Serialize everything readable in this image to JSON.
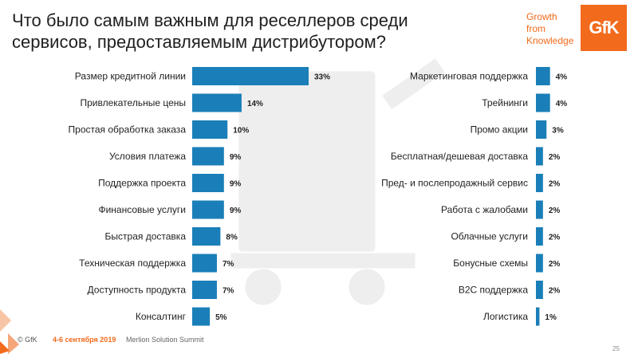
{
  "title": "Что было самым важным для реселлеров среди сервисов, предоставляемым дистрибутором?",
  "brand": {
    "tagline_1": "Growth",
    "tagline_2": "from",
    "tagline_3": "Knowledge",
    "logo_text": "GfK",
    "accent_color": "#f26a1b"
  },
  "footer": {
    "copyright": "© GfK",
    "date": "4-6 сентября 2019",
    "event": "Merlion Solution Summit",
    "page_number": "25"
  },
  "chart_data": [
    {
      "type": "bar",
      "orientation": "horizontal",
      "bar_color": "#1a7fb8",
      "categories": [
        "Размер кредитной линии",
        "Привлекательные цены",
        "Простая обработка заказа",
        "Условия платежа",
        "Поддержка проекта",
        "Финансовые услуги",
        "Быстрая доставка",
        "Техническая поддержка",
        "Доступность продукта",
        "Консалтинг"
      ],
      "values": [
        33,
        14,
        10,
        9,
        9,
        9,
        8,
        7,
        7,
        5
      ],
      "value_labels": [
        "33%",
        "14%",
        "10%",
        "9%",
        "9%",
        "9%",
        "8%",
        "7%",
        "7%",
        "5%"
      ],
      "xlim": [
        0,
        33
      ]
    },
    {
      "type": "bar",
      "orientation": "horizontal",
      "bar_color": "#1a7fb8",
      "categories": [
        "Маркетинговая поддержка",
        "Трейнинги",
        "Промо акции",
        "Бесплатная/дешевая доставка",
        "Пред- и послепродажный сервис",
        "Работа с жалобами",
        "Облачные услуги",
        "Бонусные схемы",
        "B2C поддержка",
        "Логистика"
      ],
      "values": [
        4,
        4,
        3,
        2,
        2,
        2,
        2,
        2,
        2,
        1
      ],
      "value_labels": [
        "4%",
        "4%",
        "3%",
        "2%",
        "2%",
        "2%",
        "2%",
        "2%",
        "2%",
        "1%"
      ],
      "xlim": [
        0,
        33
      ]
    }
  ]
}
